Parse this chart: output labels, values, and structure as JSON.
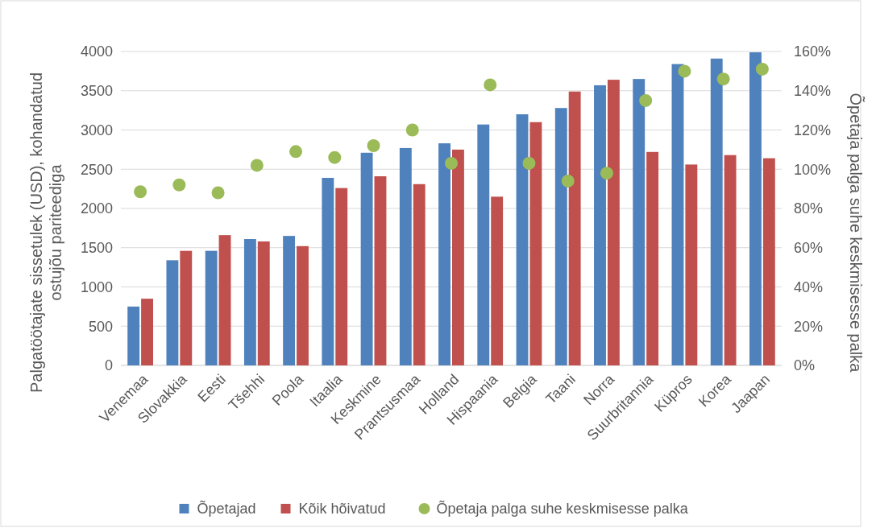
{
  "chart_data": {
    "type": "bar",
    "categories": [
      "Venemaa",
      "Slovakkia",
      "Eesti",
      "Tšehhi",
      "Poola",
      "Itaalia",
      "Keskmine",
      "Prantsusmaa",
      "Holland",
      "Hispaania",
      "Belgia",
      "Taani",
      "Norra",
      "Suurbritannia",
      "Küpros",
      "Korea",
      "Jaapan"
    ],
    "series": [
      {
        "name": "Õpetajad",
        "color": "#4f81bd",
        "values": [
          750,
          1340,
          1460,
          1610,
          1650,
          2390,
          2710,
          2770,
          2830,
          3070,
          3200,
          3280,
          3570,
          3650,
          3840,
          3910,
          3990
        ]
      },
      {
        "name": "Kõik hõivatud",
        "color": "#c0504d",
        "values": [
          850,
          1460,
          1660,
          1580,
          1520,
          2260,
          2410,
          2310,
          2750,
          2150,
          3100,
          3490,
          3640,
          2720,
          2560,
          2680,
          2640
        ]
      },
      {
        "name": "Õpetaja palga suhe keskmisesse palka",
        "type": "scatter",
        "axis": "y2",
        "color": "#9bbb59",
        "values": [
          88.5,
          92,
          88,
          102,
          109,
          106,
          112,
          120,
          103,
          143,
          103,
          94,
          98,
          135,
          150,
          146,
          151
        ]
      }
    ],
    "ylabel": "Palgatöötajate sissetulek (USD), kohandatud ostujõu pariteediga",
    "y2label": "Õpetaja palga suhe keskmisesse palka",
    "ylim": [
      0,
      4000
    ],
    "yticks": [
      0,
      500,
      1000,
      1500,
      2000,
      2500,
      3000,
      3500,
      4000
    ],
    "y2lim": [
      0,
      160
    ],
    "y2ticks": [
      {
        "value": 0,
        "label": "0%"
      },
      {
        "value": 20,
        "label": "20%"
      },
      {
        "value": 40,
        "label": "40%"
      },
      {
        "value": 60,
        "label": "60%"
      },
      {
        "value": 80,
        "label": "80%"
      },
      {
        "value": 100,
        "label": "100%"
      },
      {
        "value": 120,
        "label": "120%"
      },
      {
        "value": 140,
        "label": "140%"
      },
      {
        "value": 160,
        "label": "160%"
      }
    ],
    "grid": "y",
    "legend": "bottom",
    "marker": "circle"
  }
}
